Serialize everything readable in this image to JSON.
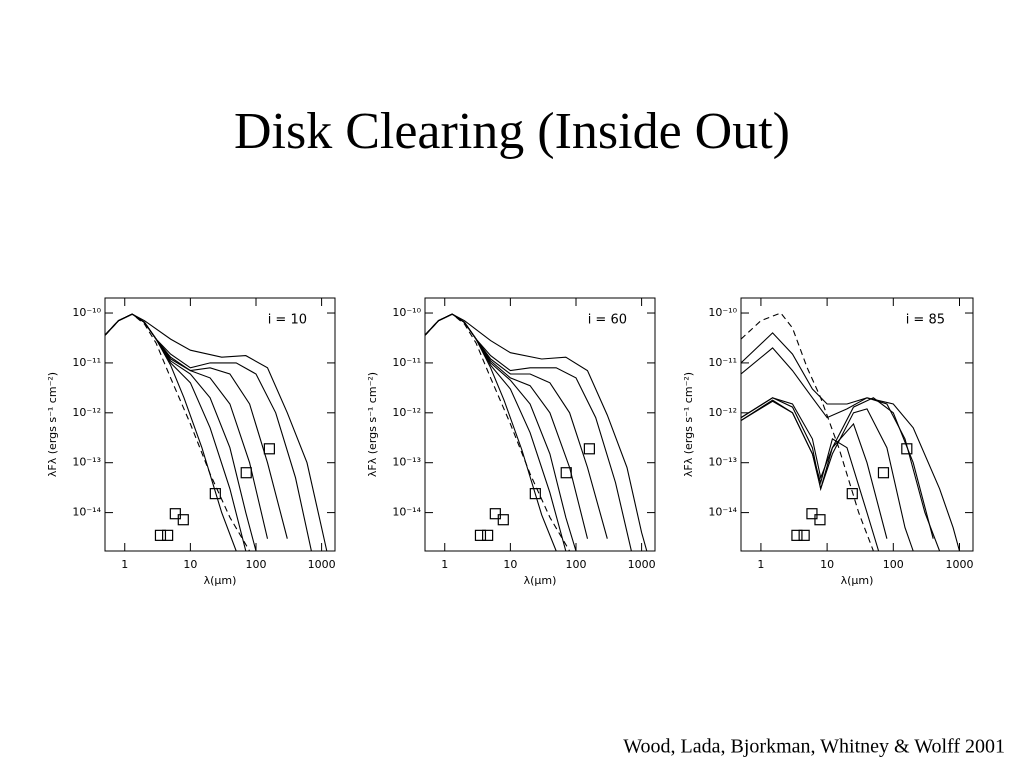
{
  "title": "Disk Clearing (Inside Out)",
  "citation": "Wood, Lada, Bjorkman, Whitney & Wolff 2001",
  "chart_data": [
    {
      "type": "line",
      "annotation": "i = 10",
      "x_label": "λ(μm)",
      "y_label": "λFλ (ergs s⁻¹ cm⁻²)",
      "log_x": true,
      "log_y": true,
      "xlim": [
        0.5,
        1600
      ],
      "ylim": [
        1.7e-15,
        2e-10
      ],
      "xticks": [
        1,
        10,
        100,
        1000
      ],
      "yticks": [
        {
          "value": 1e-10,
          "label": "10⁻¹⁰"
        },
        {
          "value": 1e-11,
          "label": "10⁻¹¹"
        },
        {
          "value": 1e-12,
          "label": "10⁻¹²"
        },
        {
          "value": 1e-13,
          "label": "10⁻¹³"
        },
        {
          "value": 1e-14,
          "label": "10⁻¹⁴"
        }
      ],
      "series": [
        {
          "style": "solid",
          "color": "#000000",
          "x": [
            0.5,
            0.8,
            1.3,
            2,
            5,
            10,
            30,
            70,
            150,
            300,
            600,
            1000,
            1200
          ],
          "values": [
            3.6e-11,
            7e-11,
            9.5e-11,
            7e-11,
            3e-11,
            1.8e-11,
            1.3e-11,
            1.4e-11,
            8e-12,
            1e-12,
            1e-13,
            5e-15,
            1.7e-15
          ]
        },
        {
          "style": "solid",
          "color": "#000000",
          "x": [
            0.5,
            0.8,
            1.3,
            2,
            3,
            5,
            10,
            20,
            50,
            100,
            200,
            400,
            700
          ],
          "values": [
            3.6e-11,
            7e-11,
            9.5e-11,
            6.5e-11,
            3e-11,
            1.5e-11,
            8e-12,
            1e-11,
            1e-11,
            6e-12,
            1e-12,
            5e-14,
            1.7e-15
          ]
        },
        {
          "style": "solid",
          "color": "#000000",
          "x": [
            0.5,
            0.8,
            1.3,
            2,
            3,
            5,
            10,
            20,
            40,
            80,
            150,
            300
          ],
          "values": [
            3.6e-11,
            7e-11,
            9.5e-11,
            6.5e-11,
            3e-11,
            1.3e-11,
            7e-12,
            8e-12,
            6e-12,
            1.5e-12,
            1e-13,
            3e-15
          ]
        },
        {
          "style": "solid",
          "color": "#000000",
          "x": [
            0.5,
            0.8,
            1.3,
            2,
            3,
            5,
            10,
            20,
            40,
            80,
            150
          ],
          "values": [
            3.6e-11,
            7e-11,
            9.5e-11,
            6.5e-11,
            3e-11,
            1.2e-11,
            7e-12,
            5e-12,
            1.5e-12,
            1e-13,
            3e-15
          ]
        },
        {
          "style": "solid",
          "color": "#000000",
          "x": [
            0.5,
            0.8,
            1.3,
            2,
            3,
            5,
            10,
            20,
            40,
            70,
            100
          ],
          "values": [
            3.6e-11,
            7e-11,
            9.5e-11,
            6.5e-11,
            3e-11,
            1.1e-11,
            6e-12,
            2e-12,
            2e-13,
            1e-14,
            1.7e-15
          ]
        },
        {
          "style": "solid",
          "color": "#000000",
          "x": [
            0.5,
            0.8,
            1.3,
            2,
            3,
            5,
            10,
            20,
            40,
            70
          ],
          "values": [
            3.6e-11,
            7e-11,
            9.5e-11,
            6.5e-11,
            3e-11,
            1e-11,
            4e-12,
            5e-13,
            3e-14,
            1.7e-15
          ]
        },
        {
          "style": "solid",
          "color": "#000000",
          "x": [
            0.5,
            0.8,
            1.3,
            2,
            3,
            5,
            8,
            15,
            30,
            50
          ],
          "values": [
            3.6e-11,
            7e-11,
            9.5e-11,
            6.5e-11,
            3e-11,
            9e-12,
            2e-12,
            2e-13,
            1e-14,
            1.7e-15
          ]
        },
        {
          "style": "dashed",
          "color": "#000000",
          "x": [
            0.5,
            0.8,
            1.3,
            2,
            3,
            5,
            10,
            20,
            40,
            80
          ],
          "values": [
            3.6e-11,
            7e-11,
            9.5e-11,
            6e-11,
            2.5e-11,
            5e-12,
            6e-13,
            6e-14,
            8e-15,
            1.7e-15
          ]
        },
        {
          "style": "square",
          "color": "#000000",
          "x": [
            3.5,
            4.5,
            5.9,
            7.8,
            24,
            71,
            160
          ],
          "values": [
            3.5e-15,
            3.5e-15,
            9.5e-15,
            7.2e-15,
            2.4e-14,
            6.3e-14,
            1.9e-13
          ]
        }
      ]
    },
    {
      "type": "line",
      "annotation": "i = 60",
      "x_label": "λ(μm)",
      "y_label": "λFλ (ergs s⁻¹ cm⁻²)",
      "log_x": true,
      "log_y": true,
      "xlim": [
        0.5,
        1600
      ],
      "ylim": [
        1.7e-15,
        2e-10
      ],
      "xticks": [
        1,
        10,
        100,
        1000
      ],
      "yticks": [
        {
          "value": 1e-10,
          "label": "10⁻¹⁰"
        },
        {
          "value": 1e-11,
          "label": "10⁻¹¹"
        },
        {
          "value": 1e-12,
          "label": "10⁻¹²"
        },
        {
          "value": 1e-13,
          "label": "10⁻¹³"
        },
        {
          "value": 1e-14,
          "label": "10⁻¹⁴"
        }
      ],
      "series": [
        {
          "style": "solid",
          "color": "#000000",
          "x": [
            0.5,
            0.8,
            1.3,
            2,
            5,
            10,
            30,
            70,
            150,
            300,
            600,
            1000,
            1200
          ],
          "values": [
            3.6e-11,
            7e-11,
            9.5e-11,
            7e-11,
            2.8e-11,
            1.6e-11,
            1.2e-11,
            1.3e-11,
            7e-12,
            9e-13,
            8e-14,
            4e-15,
            1.7e-15
          ]
        },
        {
          "style": "solid",
          "color": "#000000",
          "x": [
            0.5,
            0.8,
            1.3,
            2,
            3,
            5,
            10,
            20,
            50,
            100,
            200,
            400,
            700
          ],
          "values": [
            3.6e-11,
            7e-11,
            9.5e-11,
            6.5e-11,
            3e-11,
            1.4e-11,
            7e-12,
            8e-12,
            8e-12,
            5e-12,
            8e-13,
            4e-14,
            1.7e-15
          ]
        },
        {
          "style": "solid",
          "color": "#000000",
          "x": [
            0.5,
            0.8,
            1.3,
            2,
            3,
            5,
            10,
            20,
            40,
            80,
            150,
            300
          ],
          "values": [
            3.6e-11,
            7e-11,
            9.5e-11,
            6.5e-11,
            3e-11,
            1.2e-11,
            6e-12,
            6e-12,
            4e-12,
            1e-12,
            8e-14,
            3e-15
          ]
        },
        {
          "style": "solid",
          "color": "#000000",
          "x": [
            0.5,
            0.8,
            1.3,
            2,
            3,
            5,
            10,
            20,
            40,
            80,
            150
          ],
          "values": [
            3.6e-11,
            7e-11,
            9.5e-11,
            6.5e-11,
            3e-11,
            1.1e-11,
            5e-12,
            3.5e-12,
            1e-12,
            8e-14,
            3e-15
          ]
        },
        {
          "style": "solid",
          "color": "#000000",
          "x": [
            0.5,
            0.8,
            1.3,
            2,
            3,
            5,
            10,
            20,
            40,
            70,
            100
          ],
          "values": [
            3.6e-11,
            7e-11,
            9.5e-11,
            6.5e-11,
            3e-11,
            1e-11,
            4.5e-12,
            1.5e-12,
            1.5e-13,
            8e-15,
            1.7e-15
          ]
        },
        {
          "style": "solid",
          "color": "#000000",
          "x": [
            0.5,
            0.8,
            1.3,
            2,
            3,
            5,
            10,
            20,
            40,
            70
          ],
          "values": [
            3.6e-11,
            7e-11,
            9.5e-11,
            6.5e-11,
            3e-11,
            9e-12,
            3e-12,
            4e-13,
            2.5e-14,
            1.7e-15
          ]
        },
        {
          "style": "solid",
          "color": "#000000",
          "x": [
            0.5,
            0.8,
            1.3,
            2,
            3,
            5,
            8,
            15,
            30,
            50
          ],
          "values": [
            3.6e-11,
            7e-11,
            9.5e-11,
            6.5e-11,
            3e-11,
            8e-12,
            1.8e-12,
            1.8e-13,
            9e-15,
            1.7e-15
          ]
        },
        {
          "style": "dashed",
          "color": "#000000",
          "x": [
            0.5,
            0.8,
            1.3,
            2,
            3,
            5,
            10,
            20,
            40,
            80
          ],
          "values": [
            3.6e-11,
            7e-11,
            9.5e-11,
            6e-11,
            2.5e-11,
            5e-12,
            6e-13,
            6e-14,
            8e-15,
            1.7e-15
          ]
        },
        {
          "style": "square",
          "color": "#000000",
          "x": [
            3.5,
            4.5,
            5.9,
            7.8,
            24,
            71,
            160
          ],
          "values": [
            3.5e-15,
            3.5e-15,
            9.5e-15,
            7.2e-15,
            2.4e-14,
            6.3e-14,
            1.9e-13
          ]
        }
      ]
    },
    {
      "type": "line",
      "annotation": "i = 85",
      "x_label": "λ(μm)",
      "y_label": "λFλ (ergs s⁻¹ cm⁻²)",
      "log_x": true,
      "log_y": true,
      "xlim": [
        0.5,
        1600
      ],
      "ylim": [
        1.7e-15,
        2e-10
      ],
      "xticks": [
        1,
        10,
        100,
        1000
      ],
      "yticks": [
        {
          "value": 1e-10,
          "label": "10⁻¹⁰"
        },
        {
          "value": 1e-11,
          "label": "10⁻¹¹"
        },
        {
          "value": 1e-12,
          "label": "10⁻¹²"
        },
        {
          "value": 1e-13,
          "label": "10⁻¹³"
        },
        {
          "value": 1e-14,
          "label": "10⁻¹⁴"
        }
      ],
      "series": [
        {
          "style": "solid",
          "color": "#000000",
          "x": [
            0.5,
            1.5,
            3,
            6,
            10,
            20,
            40,
            100,
            200,
            500,
            800,
            1000
          ],
          "values": [
            1e-11,
            4e-11,
            1.5e-11,
            3e-12,
            1.5e-12,
            1.5e-12,
            2e-12,
            1.5e-12,
            5e-13,
            3e-14,
            5e-15,
            1.7e-15
          ]
        },
        {
          "style": "solid",
          "color": "#000000",
          "x": [
            0.5,
            1.5,
            3,
            6,
            10,
            20,
            40,
            80,
            150,
            300,
            500
          ],
          "values": [
            6e-12,
            2e-11,
            7e-12,
            2e-12,
            8e-13,
            1.2e-12,
            2e-12,
            1.5e-12,
            3e-13,
            1e-14,
            1.7e-15
          ]
        },
        {
          "style": "solid",
          "color": "#000000",
          "x": [
            0.5,
            1.5,
            3,
            6,
            8,
            12,
            25,
            50,
            100,
            200,
            400
          ],
          "values": [
            8e-13,
            2e-12,
            1.5e-12,
            3e-13,
            5e-14,
            2e-13,
            1.3e-12,
            2e-12,
            1e-12,
            1e-13,
            3e-15
          ]
        },
        {
          "style": "solid",
          "color": "#000000",
          "x": [
            0.5,
            1.5,
            3,
            6,
            8,
            12,
            25,
            40,
            80,
            150,
            200
          ],
          "values": [
            8e-13,
            2e-12,
            1.3e-12,
            2e-13,
            3e-14,
            1.5e-13,
            1e-12,
            1.2e-12,
            2e-13,
            5e-15,
            1.7e-15
          ]
        },
        {
          "style": "solid",
          "color": "#000000",
          "x": [
            0.5,
            1.5,
            3,
            6,
            8,
            12,
            25,
            40,
            80
          ],
          "values": [
            7e-13,
            1.8e-12,
            1e-12,
            1.5e-13,
            3e-14,
            2e-13,
            6e-13,
            1e-13,
            3e-15
          ]
        },
        {
          "style": "solid",
          "color": "#000000",
          "x": [
            0.5,
            1.5,
            3,
            6,
            8,
            12,
            20,
            40,
            60
          ],
          "values": [
            7e-13,
            1.7e-12,
            1e-12,
            1.5e-13,
            4e-14,
            3e-13,
            2e-13,
            1e-14,
            1.7e-15
          ]
        },
        {
          "style": "dashed",
          "color": "#000000",
          "x": [
            0.5,
            1,
            2,
            3,
            5,
            8,
            15,
            30,
            50
          ],
          "values": [
            3e-11,
            7e-11,
            1e-10,
            5e-11,
            8e-12,
            2e-12,
            2e-13,
            1e-14,
            1.7e-15
          ]
        },
        {
          "style": "square",
          "color": "#000000",
          "x": [
            3.5,
            4.5,
            5.9,
            7.8,
            24,
            71,
            160
          ],
          "values": [
            3.5e-15,
            3.5e-15,
            9.5e-15,
            7.2e-15,
            2.4e-14,
            6.3e-14,
            1.9e-13
          ]
        }
      ]
    }
  ]
}
